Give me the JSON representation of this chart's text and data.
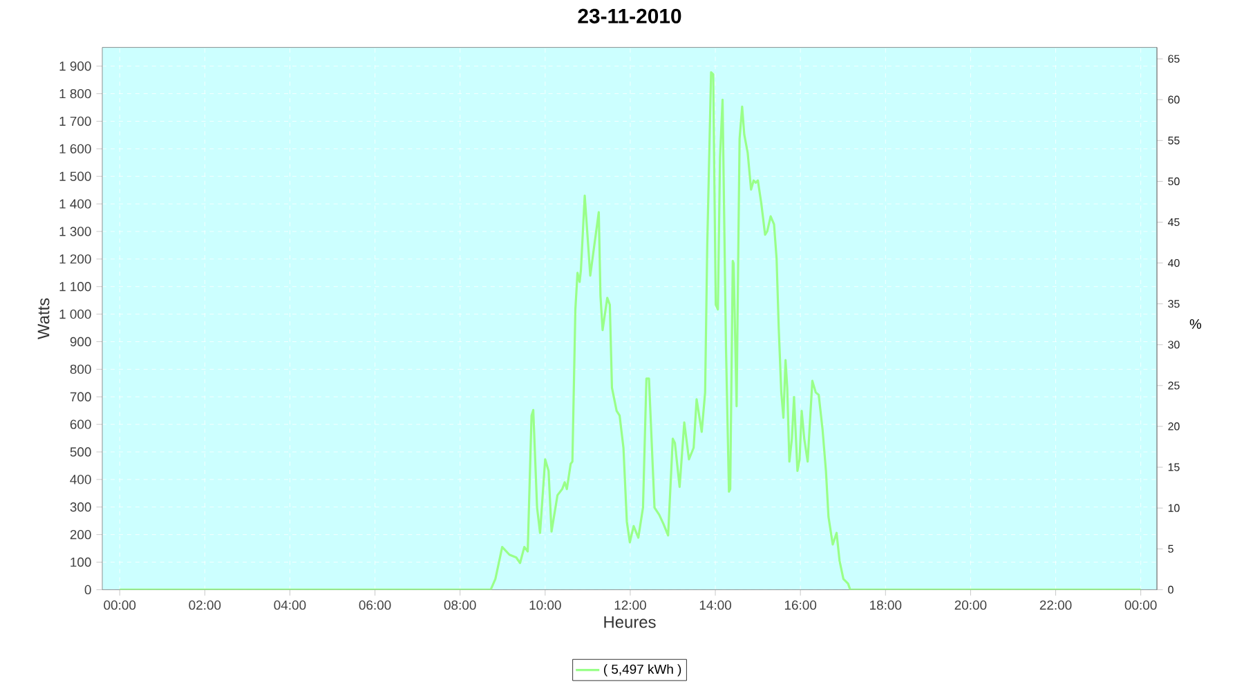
{
  "chart_data": {
    "type": "line",
    "title": "23-11-2010",
    "xlabel": "Heures",
    "ylabel": "Watts",
    "y2label": "%",
    "x": [
      0,
      8.72,
      8.83,
      8.99,
      9.16,
      9.32,
      9.41,
      9.51,
      9.59,
      9.68,
      9.72,
      9.81,
      9.88,
      10.0,
      10.08,
      10.15,
      10.29,
      10.4,
      10.46,
      10.51,
      10.6,
      10.64,
      10.71,
      10.76,
      10.81,
      10.84,
      10.93,
      11.06,
      11.26,
      11.3,
      11.35,
      11.46,
      11.52,
      11.57,
      11.68,
      11.75,
      11.84,
      11.92,
      11.99,
      12.08,
      12.19,
      12.3,
      12.38,
      12.44,
      12.57,
      12.68,
      12.78,
      12.89,
      13.0,
      13.05,
      13.16,
      13.27,
      13.38,
      13.49,
      13.56,
      13.68,
      13.76,
      13.81,
      13.9,
      13.95,
      14.01,
      14.06,
      14.11,
      14.17,
      14.25,
      14.32,
      14.35,
      14.41,
      14.43,
      14.5,
      14.54,
      14.57,
      14.63,
      14.68,
      14.76,
      14.84,
      14.9,
      14.95,
      15.0,
      15.08,
      15.17,
      15.22,
      15.3,
      15.38,
      15.44,
      15.49,
      15.55,
      15.6,
      15.65,
      15.69,
      15.74,
      15.8,
      15.85,
      15.93,
      15.98,
      16.03,
      16.09,
      16.17,
      16.28,
      16.36,
      16.43,
      16.52,
      16.6,
      16.66,
      16.76,
      16.85,
      16.92,
      17.01,
      17.12,
      17.17,
      24
    ],
    "series": [
      {
        "name": "( 5,497 kWh )",
        "color": "#99ff88",
        "values": [
          0,
          0,
          39,
          155,
          127,
          117,
          97,
          155,
          139,
          632,
          652,
          298,
          206,
          473,
          431,
          211,
          343,
          365,
          390,
          365,
          457,
          465,
          1017,
          1150,
          1117,
          1159,
          1430,
          1140,
          1370,
          1067,
          942,
          1059,
          1034,
          733,
          649,
          632,
          515,
          247,
          172,
          231,
          189,
          298,
          766,
          766,
          298,
          272,
          239,
          197,
          548,
          532,
          373,
          607,
          473,
          515,
          691,
          573,
          716,
          1251,
          1878,
          1870,
          1034,
          1017,
          1569,
          1778,
          883,
          356,
          365,
          1193,
          1184,
          666,
          1234,
          1636,
          1753,
          1652,
          1586,
          1452,
          1485,
          1477,
          1485,
          1402,
          1288,
          1301,
          1355,
          1326,
          1201,
          950,
          716,
          624,
          833,
          733,
          465,
          548,
          699,
          431,
          473,
          649,
          548,
          465,
          758,
          716,
          707,
          582,
          431,
          264,
          164,
          206,
          105,
          39,
          22,
          0,
          0
        ]
      }
    ],
    "xlim": [
      -0.41,
      24.38
    ],
    "xticks": [
      {
        "value": 0,
        "label": "00:00"
      },
      {
        "value": 2,
        "label": "02:00"
      },
      {
        "value": 4,
        "label": "04:00"
      },
      {
        "value": 6,
        "label": "06:00"
      },
      {
        "value": 8,
        "label": "08:00"
      },
      {
        "value": 10,
        "label": "10:00"
      },
      {
        "value": 12,
        "label": "12:00"
      },
      {
        "value": 14,
        "label": "14:00"
      },
      {
        "value": 16,
        "label": "16:00"
      },
      {
        "value": 18,
        "label": "18:00"
      },
      {
        "value": 20,
        "label": "20:00"
      },
      {
        "value": 22,
        "label": "22:00"
      },
      {
        "value": 24,
        "label": "00:00"
      }
    ],
    "ylim": [
      0,
      1968
    ],
    "yticks": [
      0,
      100,
      200,
      300,
      400,
      500,
      600,
      700,
      800,
      900,
      {
        "value": 1000,
        "label": "1 000"
      },
      {
        "value": 1100,
        "label": "1 100"
      },
      {
        "value": 1200,
        "label": "1 200"
      },
      {
        "value": 1300,
        "label": "1 300"
      },
      {
        "value": 1400,
        "label": "1 400"
      },
      {
        "value": 1500,
        "label": "1 500"
      },
      {
        "value": 1600,
        "label": "1 600"
      },
      {
        "value": 1700,
        "label": "1 700"
      },
      {
        "value": 1800,
        "label": "1 800"
      },
      {
        "value": 1900,
        "label": "1 900"
      }
    ],
    "y2lim": [
      0,
      66.4
    ],
    "y2ticks": [
      0,
      5,
      10,
      15,
      20,
      25,
      30,
      35,
      40,
      45,
      50,
      55,
      60,
      65
    ],
    "grid": true,
    "legend": "bottom",
    "marker": "none",
    "line_style": "solid"
  }
}
